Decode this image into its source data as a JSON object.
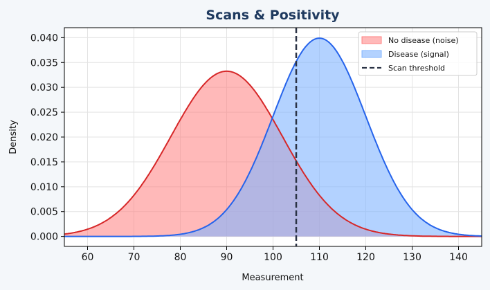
{
  "chart_data": {
    "type": "area",
    "title": "Scans & Positivity",
    "xlabel": "Measurement",
    "ylabel": "Density",
    "xlim": [
      55,
      145
    ],
    "ylim": [
      -0.002,
      0.042
    ],
    "xticks": [
      "60",
      "70",
      "80",
      "90",
      "100",
      "110",
      "120",
      "130",
      "140"
    ],
    "yticks": [
      "0.000",
      "0.005",
      "0.010",
      "0.015",
      "0.020",
      "0.025",
      "0.030",
      "0.035",
      "0.040"
    ],
    "grid": true,
    "legend_placement": "top-right",
    "series": [
      {
        "name": "No disease (noise)",
        "distribution": "normal",
        "mean": 90,
        "sd": 12,
        "peak": 0.0333,
        "line_color": "#d62728",
        "fill_color": "#ff8080"
      },
      {
        "name": "Disease (signal)",
        "distribution": "normal",
        "mean": 110,
        "sd": 10,
        "peak": 0.0399,
        "line_color": "#2563eb",
        "fill_color": "#80b4ff"
      }
    ],
    "threshold": {
      "name": "Scan threshold",
      "x": 105,
      "color": "#2b3345"
    },
    "title_color": "#1f3a5f"
  }
}
